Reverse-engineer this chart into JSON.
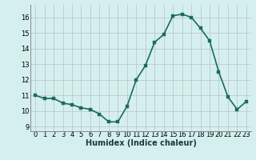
{
  "x": [
    0,
    1,
    2,
    3,
    4,
    5,
    6,
    7,
    8,
    9,
    10,
    11,
    12,
    13,
    14,
    15,
    16,
    17,
    18,
    19,
    20,
    21,
    22,
    23
  ],
  "y": [
    11.0,
    10.8,
    10.8,
    10.5,
    10.4,
    10.2,
    10.1,
    9.8,
    9.3,
    9.3,
    10.3,
    12.0,
    12.9,
    14.4,
    14.9,
    16.1,
    16.2,
    16.0,
    15.3,
    14.5,
    12.5,
    10.9,
    10.1,
    10.6
  ],
  "xlabel": "Humidex (Indice chaleur)",
  "xlim": [
    -0.5,
    23.5
  ],
  "ylim": [
    8.7,
    16.8
  ],
  "yticks": [
    9,
    10,
    11,
    12,
    13,
    14,
    15,
    16
  ],
  "xticks": [
    0,
    1,
    2,
    3,
    4,
    5,
    6,
    7,
    8,
    9,
    10,
    11,
    12,
    13,
    14,
    15,
    16,
    17,
    18,
    19,
    20,
    21,
    22,
    23
  ],
  "line_color": "#1a6b5a",
  "marker_color": "#1a6b5a",
  "bg_color": "#d5efef",
  "grid_color": "#c0c8c8",
  "spine_color": "#888888",
  "xlabel_fontsize": 7,
  "tick_fontsize": 6,
  "line_width": 1.2,
  "marker_size": 2.5
}
